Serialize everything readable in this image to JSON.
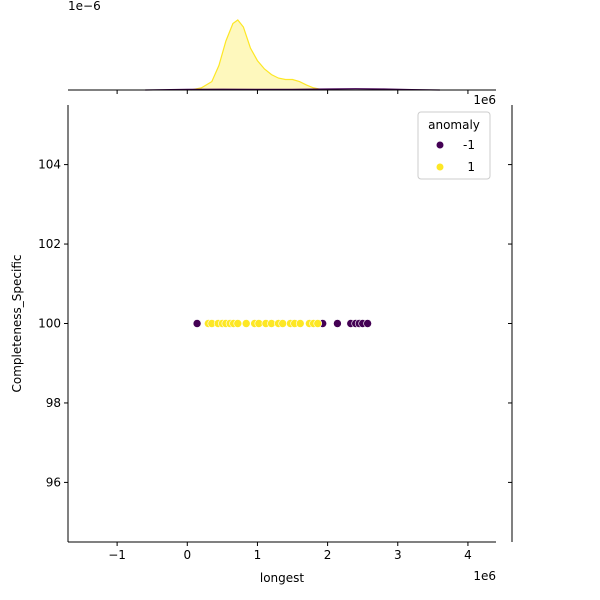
{
  "chart_data": {
    "type": "scatter",
    "title": "",
    "xlabel": "longest",
    "ylabel": "Completeness_Specific",
    "x_offset_text": "1e6",
    "y_offset_text": "",
    "xlim": [
      -1.7,
      4.4
    ],
    "ylim": [
      94.5,
      105.5
    ],
    "x_ticks": [
      -1,
      0,
      1,
      2,
      3,
      4
    ],
    "y_ticks": [
      96,
      98,
      100,
      102,
      104
    ],
    "grid": false,
    "legend": {
      "title": "anomaly",
      "position": "top-right",
      "entries": [
        {
          "label": "-1",
          "color": "#440154"
        },
        {
          "label": "1",
          "color": "#fde725"
        }
      ]
    },
    "series": [
      {
        "name": "-1",
        "color": "#440154",
        "points": [
          [
            0.14,
            100
          ],
          [
            1.93,
            100
          ],
          [
            2.14,
            100
          ],
          [
            2.33,
            100
          ],
          [
            2.4,
            100
          ],
          [
            2.45,
            100
          ],
          [
            2.5,
            100
          ],
          [
            2.57,
            100
          ]
        ]
      },
      {
        "name": "1",
        "color": "#fde725",
        "points": [
          [
            0.3,
            100
          ],
          [
            0.35,
            100
          ],
          [
            0.44,
            100
          ],
          [
            0.5,
            100
          ],
          [
            0.55,
            100
          ],
          [
            0.61,
            100
          ],
          [
            0.66,
            100
          ],
          [
            0.72,
            100
          ],
          [
            0.84,
            100
          ],
          [
            0.96,
            100
          ],
          [
            1.02,
            100
          ],
          [
            1.12,
            100
          ],
          [
            1.2,
            100
          ],
          [
            1.3,
            100
          ],
          [
            1.36,
            100
          ],
          [
            1.47,
            100
          ],
          [
            1.53,
            100
          ],
          [
            1.61,
            100
          ],
          [
            1.74,
            100
          ],
          [
            1.8,
            100
          ],
          [
            1.86,
            100
          ]
        ]
      }
    ],
    "marginal_x": {
      "offset_text": "1e−6",
      "peak_density": 1.0,
      "yellow_density": [
        [
          0.05,
          0.0
        ],
        [
          0.2,
          0.03
        ],
        [
          0.35,
          0.12
        ],
        [
          0.45,
          0.35
        ],
        [
          0.55,
          0.7
        ],
        [
          0.65,
          0.95
        ],
        [
          0.72,
          1.0
        ],
        [
          0.8,
          0.9
        ],
        [
          0.9,
          0.6
        ],
        [
          1.0,
          0.42
        ],
        [
          1.1,
          0.3
        ],
        [
          1.2,
          0.22
        ],
        [
          1.3,
          0.17
        ],
        [
          1.4,
          0.15
        ],
        [
          1.5,
          0.15
        ],
        [
          1.6,
          0.12
        ],
        [
          1.7,
          0.07
        ],
        [
          1.8,
          0.03
        ],
        [
          1.9,
          0.01
        ],
        [
          2.0,
          0.0
        ]
      ],
      "purple_density": [
        [
          -0.6,
          0.0
        ],
        [
          0.0,
          0.008
        ],
        [
          0.5,
          0.012
        ],
        [
          1.0,
          0.01
        ],
        [
          1.5,
          0.01
        ],
        [
          2.0,
          0.014
        ],
        [
          2.4,
          0.018
        ],
        [
          2.8,
          0.014
        ],
        [
          3.2,
          0.006
        ],
        [
          3.6,
          0.0
        ]
      ]
    }
  }
}
